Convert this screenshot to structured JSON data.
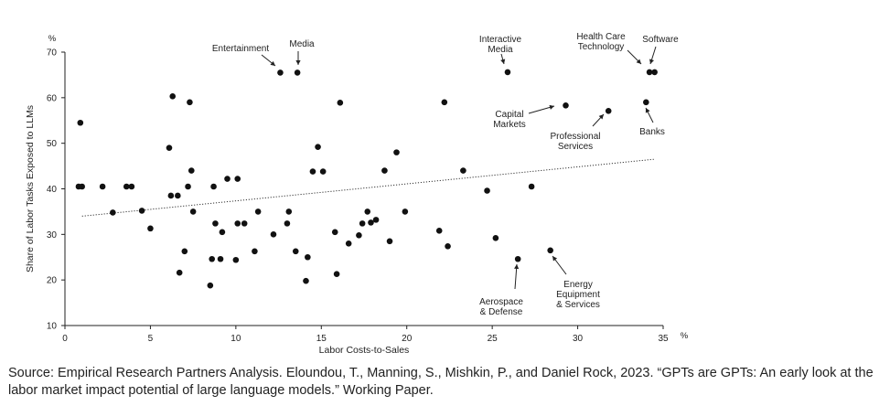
{
  "chart_data": {
    "type": "scatter",
    "title": "",
    "xlabel": "Labor Costs-to-Sales",
    "ylabel": "Share of Labor Tasks Exposed to LLMs",
    "x_unit": "%",
    "y_unit": "%",
    "xlim": [
      0,
      35
    ],
    "ylim": [
      10,
      70
    ],
    "xticks": [
      0,
      5,
      10,
      15,
      20,
      25,
      30,
      35
    ],
    "yticks": [
      10,
      20,
      30,
      40,
      50,
      60,
      70
    ],
    "grid": false,
    "legend": "none",
    "trendline": {
      "style": "dotted",
      "x": [
        1,
        34.5
      ],
      "y": [
        34,
        46.5
      ]
    },
    "points": [
      {
        "x": 0.8,
        "y": 40.5
      },
      {
        "x": 1.0,
        "y": 40.5
      },
      {
        "x": 0.9,
        "y": 54.5
      },
      {
        "x": 2.2,
        "y": 40.5
      },
      {
        "x": 2.8,
        "y": 34.8
      },
      {
        "x": 3.6,
        "y": 40.5
      },
      {
        "x": 3.9,
        "y": 40.5
      },
      {
        "x": 4.5,
        "y": 35.2
      },
      {
        "x": 5.0,
        "y": 31.3
      },
      {
        "x": 6.1,
        "y": 49.0
      },
      {
        "x": 6.2,
        "y": 38.5
      },
      {
        "x": 6.3,
        "y": 60.3
      },
      {
        "x": 6.6,
        "y": 38.5
      },
      {
        "x": 6.7,
        "y": 21.6
      },
      {
        "x": 7.0,
        "y": 26.3
      },
      {
        "x": 7.2,
        "y": 40.5
      },
      {
        "x": 7.3,
        "y": 59.0
      },
      {
        "x": 7.4,
        "y": 44.0
      },
      {
        "x": 7.5,
        "y": 35.0
      },
      {
        "x": 8.5,
        "y": 18.8
      },
      {
        "x": 8.6,
        "y": 24.6
      },
      {
        "x": 8.7,
        "y": 40.5
      },
      {
        "x": 8.8,
        "y": 32.4
      },
      {
        "x": 9.1,
        "y": 24.6
      },
      {
        "x": 9.2,
        "y": 30.5
      },
      {
        "x": 9.5,
        "y": 42.2
      },
      {
        "x": 10.0,
        "y": 24.4
      },
      {
        "x": 10.1,
        "y": 42.2
      },
      {
        "x": 10.1,
        "y": 32.4
      },
      {
        "x": 10.5,
        "y": 32.4
      },
      {
        "x": 11.1,
        "y": 26.3
      },
      {
        "x": 11.3,
        "y": 35.0
      },
      {
        "x": 12.2,
        "y": 30.0
      },
      {
        "x": 12.6,
        "y": 65.5
      },
      {
        "x": 13.0,
        "y": 32.4
      },
      {
        "x": 13.1,
        "y": 35.0
      },
      {
        "x": 13.5,
        "y": 26.3
      },
      {
        "x": 13.6,
        "y": 65.5
      },
      {
        "x": 14.1,
        "y": 19.8
      },
      {
        "x": 14.2,
        "y": 25.0
      },
      {
        "x": 14.5,
        "y": 43.8
      },
      {
        "x": 14.8,
        "y": 49.2
      },
      {
        "x": 15.1,
        "y": 43.8
      },
      {
        "x": 15.8,
        "y": 30.5
      },
      {
        "x": 15.9,
        "y": 21.3
      },
      {
        "x": 16.1,
        "y": 58.9
      },
      {
        "x": 16.6,
        "y": 28.0
      },
      {
        "x": 17.2,
        "y": 29.8
      },
      {
        "x": 17.4,
        "y": 32.4
      },
      {
        "x": 17.7,
        "y": 35.0
      },
      {
        "x": 17.9,
        "y": 32.6
      },
      {
        "x": 18.2,
        "y": 33.2
      },
      {
        "x": 18.7,
        "y": 44.0
      },
      {
        "x": 19.0,
        "y": 28.5
      },
      {
        "x": 19.4,
        "y": 48.0
      },
      {
        "x": 19.9,
        "y": 35.0
      },
      {
        "x": 21.9,
        "y": 30.8
      },
      {
        "x": 22.2,
        "y": 59.0
      },
      {
        "x": 22.4,
        "y": 27.4
      },
      {
        "x": 23.3,
        "y": 44.0
      },
      {
        "x": 24.7,
        "y": 39.6
      },
      {
        "x": 25.2,
        "y": 29.2
      },
      {
        "x": 25.9,
        "y": 65.6
      },
      {
        "x": 26.5,
        "y": 24.6
      },
      {
        "x": 27.3,
        "y": 40.5
      },
      {
        "x": 28.4,
        "y": 26.5
      },
      {
        "x": 29.3,
        "y": 58.3
      },
      {
        "x": 31.8,
        "y": 57.1
      },
      {
        "x": 34.0,
        "y": 59.0
      },
      {
        "x": 34.2,
        "y": 65.6
      },
      {
        "x": 34.5,
        "y": 65.6
      }
    ],
    "annotations": [
      {
        "id": "entertainment",
        "lines": [
          "Entertainment"
        ]
      },
      {
        "id": "media",
        "lines": [
          "Media"
        ]
      },
      {
        "id": "interactive-media",
        "lines": [
          "Interactive",
          "Media"
        ]
      },
      {
        "id": "health-care-technology",
        "lines": [
          "Health Care",
          "Technology"
        ]
      },
      {
        "id": "software",
        "lines": [
          "Software"
        ]
      },
      {
        "id": "capital-markets",
        "lines": [
          "Capital",
          "Markets"
        ]
      },
      {
        "id": "professional-services",
        "lines": [
          "Professional",
          "Services"
        ]
      },
      {
        "id": "banks",
        "lines": [
          "Banks"
        ]
      },
      {
        "id": "aerospace-defense",
        "lines": [
          "Aerospace",
          "& Defense"
        ]
      },
      {
        "id": "energy-equipment-services",
        "lines": [
          "Energy",
          "Equipment",
          "& Services"
        ]
      }
    ]
  },
  "source_note": "Source: Empirical Research Partners Analysis. Eloundou, T., Manning, S., Mishkin, P., and Daniel Rock, 2023. “GPTs are GPTs: An early look at the labor market impact potential of large language models.” Working Paper."
}
